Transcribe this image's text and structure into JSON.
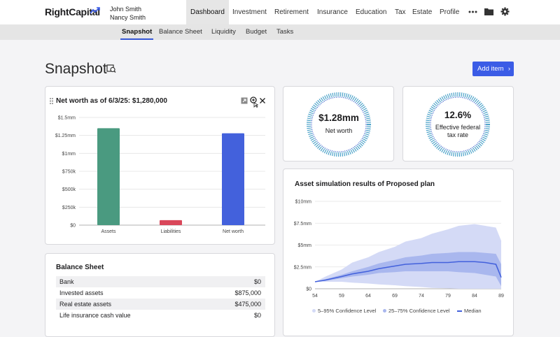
{
  "header": {
    "logo": "RightCapital",
    "users": [
      "John Smith",
      "Nancy Smith"
    ],
    "nav": [
      "Dashboard",
      "Investment",
      "Retirement",
      "Insurance",
      "Education",
      "Tax",
      "Estate",
      "Profile"
    ],
    "active_nav": "Dashboard",
    "icons": [
      "more-icon",
      "folder-icon",
      "gear-icon"
    ]
  },
  "subnav": {
    "tabs": [
      "Snapshot",
      "Balance Sheet",
      "Liquidity",
      "Budget",
      "Tasks"
    ],
    "active": "Snapshot"
  },
  "page": {
    "title": "Snapshot",
    "add_button": "Add item"
  },
  "net_worth_card": {
    "title": "Net worth as of 6/3/25: $1,280,000",
    "chart_data": {
      "type": "bar",
      "categories": [
        "Assets",
        "Liabilities",
        "Net worth"
      ],
      "values": [
        1350000,
        70000,
        1280000
      ],
      "colors": [
        "#4a9a80",
        "#d9475a",
        "#4361dc"
      ],
      "ylim": [
        0,
        1500000
      ],
      "yticks": [
        "$0",
        "$250k",
        "$500k",
        "$750k",
        "$1mm",
        "$1.25mm",
        "$1.5mm"
      ],
      "grid": true
    }
  },
  "net_worth_ring": {
    "value": "$1.28mm",
    "label": "Net worth"
  },
  "tax_ring": {
    "value": "12.6%",
    "label_line1": "Effective federal",
    "label_line2": "tax rate"
  },
  "simulation_card": {
    "title": "Asset simulation results of Proposed plan",
    "chart_data": {
      "type": "area",
      "x": [
        54,
        56,
        59,
        61,
        64,
        66,
        69,
        71,
        74,
        76,
        79,
        81,
        84,
        86,
        88,
        89
      ],
      "xticks": [
        "54",
        "59",
        "64",
        "69",
        "74",
        "79",
        "84",
        "89"
      ],
      "yticks": [
        "$0",
        "$2.5mm",
        "$5mm",
        "$7.5mm",
        "$10mm"
      ],
      "ylim": [
        0,
        10000000
      ],
      "series": [
        {
          "name": "5–95% Confidence Level",
          "upper": [
            0.8,
            1.4,
            2.2,
            3.0,
            3.6,
            4.2,
            4.8,
            5.4,
            5.8,
            6.3,
            6.8,
            7.2,
            7.4,
            7.2,
            7.0,
            5.5
          ],
          "lower": [
            0.8,
            0.8,
            0.8,
            0.7,
            0.6,
            0.5,
            0.4,
            0.3,
            0.2,
            0.1,
            0.05,
            0,
            0,
            0,
            0,
            0
          ],
          "color": "#d4daf6"
        },
        {
          "name": "25–75% Confidence Level",
          "upper": [
            0.8,
            1.1,
            1.6,
            2.0,
            2.5,
            2.9,
            3.3,
            3.6,
            3.8,
            4.0,
            4.1,
            4.2,
            4.2,
            4.1,
            4.0,
            2.8
          ],
          "lower": [
            0.8,
            0.9,
            1.2,
            1.4,
            1.6,
            1.8,
            1.9,
            2.0,
            2.0,
            2.0,
            2.0,
            1.9,
            1.8,
            1.6,
            1.4,
            0.3
          ],
          "color": "#a9b7ee"
        },
        {
          "name": "Median",
          "values": [
            0.8,
            1.0,
            1.4,
            1.7,
            2.0,
            2.3,
            2.6,
            2.8,
            2.9,
            3.0,
            3.0,
            3.1,
            3.1,
            3.0,
            2.8,
            1.3
          ],
          "color": "#4361dc"
        }
      ]
    },
    "legend": [
      "5–95% Confidence Level",
      "25–75% Confidence Level",
      "Median"
    ]
  },
  "balance_sheet": {
    "title": "Balance Sheet",
    "rows": [
      {
        "label": "Bank",
        "value": "$0"
      },
      {
        "label": "Invested assets",
        "value": "$875,000"
      },
      {
        "label": "Real estate assets",
        "value": "$475,000"
      },
      {
        "label": "Life insurance cash value",
        "value": "$0"
      }
    ]
  }
}
